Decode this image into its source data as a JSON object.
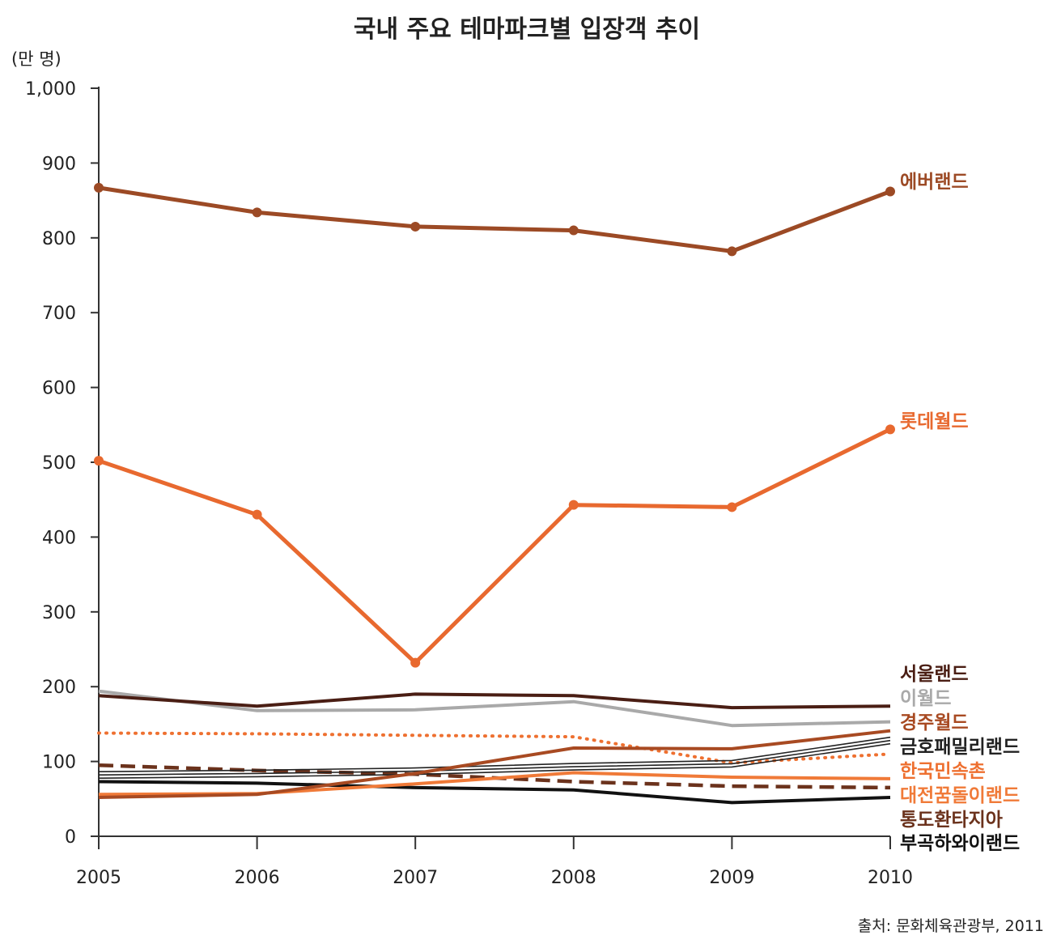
{
  "chart_data": {
    "type": "line",
    "title": "국내 주요 테마파크별 입장객 추이",
    "unit_label": "(만 명)",
    "source": "출처: 문화체육관광부, 2011",
    "x": [
      "2005",
      "2006",
      "2007",
      "2008",
      "2009",
      "2010"
    ],
    "ylim": [
      0,
      1000
    ],
    "yticks": [
      "0",
      "100",
      "200",
      "300",
      "400",
      "500",
      "600",
      "700",
      "800",
      "900",
      "1,000"
    ],
    "grid": false,
    "series": [
      {
        "name": "에버랜드",
        "color": "#9c4a25",
        "style": "solid-marker",
        "values": [
          867,
          834,
          815,
          810,
          782,
          862
        ]
      },
      {
        "name": "롯데월드",
        "color": "#e8692f",
        "style": "solid-marker",
        "values": [
          502,
          430,
          232,
          443,
          440,
          544
        ]
      },
      {
        "name": "서울랜드",
        "color": "#4a1e14",
        "style": "solid",
        "values": [
          188,
          174,
          190,
          188,
          172,
          174
        ]
      },
      {
        "name": "이월드",
        "color": "#a9a9a9",
        "style": "solid",
        "values": [
          194,
          168,
          169,
          180,
          148,
          153
        ]
      },
      {
        "name": "경주월드",
        "color": "#a84a22",
        "style": "solid",
        "values": [
          52,
          56,
          84,
          118,
          117,
          141
        ]
      },
      {
        "name": "금호패밀리랜드",
        "color": "#222222",
        "style": "triple",
        "values": [
          82,
          84,
          87,
          93,
          97,
          128
        ]
      },
      {
        "name": "한국민속촌",
        "color": "#ee7030",
        "style": "dotted",
        "values": [
          138,
          137,
          135,
          133,
          98,
          110
        ]
      },
      {
        "name": "대전꿈돌이랜드",
        "color": "#f07a38",
        "style": "solid",
        "values": [
          56,
          57,
          70,
          85,
          79,
          77
        ]
      },
      {
        "name": "통도환타지아",
        "color": "#6b321c",
        "style": "dashed",
        "values": [
          95,
          88,
          83,
          73,
          67,
          65
        ]
      },
      {
        "name": "부곡하와이랜드",
        "color": "#111111",
        "style": "solid",
        "values": [
          73,
          71,
          65,
          62,
          45,
          52
        ]
      }
    ]
  }
}
